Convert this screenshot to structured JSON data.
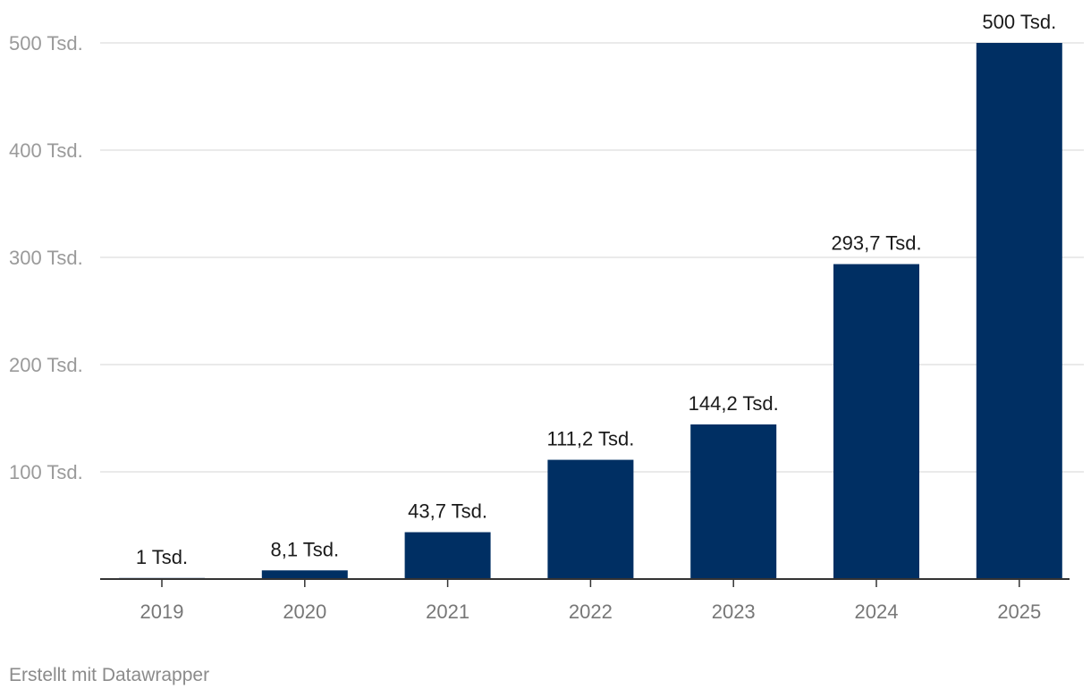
{
  "chart_data": {
    "type": "bar",
    "categories": [
      "2019",
      "2020",
      "2021",
      "2022",
      "2023",
      "2024",
      "2025"
    ],
    "values": [
      1,
      8.1,
      43.7,
      111.2,
      144.2,
      293.7,
      500
    ],
    "data_labels": [
      "1 Tsd.",
      "8,1 Tsd.",
      "43,7 Tsd.",
      "111,2 Tsd.",
      "144,2 Tsd.",
      "293,7 Tsd.",
      "500 Tsd."
    ],
    "y_ticks": [
      100,
      200,
      300,
      400,
      500
    ],
    "y_tick_labels": [
      "100 Tsd.",
      "200 Tsd.",
      "300 Tsd.",
      "400 Tsd.",
      "500 Tsd."
    ],
    "ylim": [
      0,
      500
    ],
    "grid": true,
    "title": "",
    "xlabel": "",
    "ylabel": "",
    "colors": {
      "bar": "#002f63",
      "grid": "#e3e3e3",
      "axis": "#333333",
      "tick_label": "#9a9a9a",
      "data_label": "#1a1a1a"
    }
  },
  "footer": {
    "credit": "Erstellt mit Datawrapper"
  }
}
